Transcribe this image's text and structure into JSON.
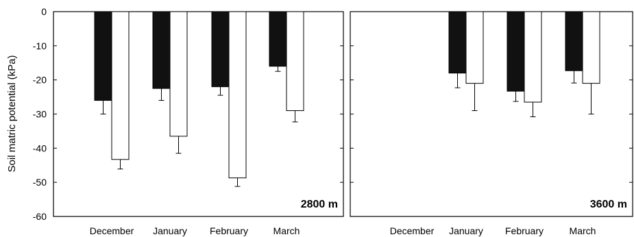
{
  "chart_data": {
    "type": "bar",
    "ylabel": "Soil matric potential  (kPa)",
    "ylim": [
      -60,
      0
    ],
    "yticks": [
      0,
      -10,
      -20,
      -30,
      -40,
      -50,
      -60
    ],
    "categories": [
      "December",
      "January",
      "February",
      "March"
    ],
    "colors": {
      "dark": "#111111",
      "light": "#ffffff"
    },
    "panels": [
      {
        "label": "2800 m",
        "series": [
          {
            "values": [
              -26,
              -22.5,
              -22,
              -16
            ],
            "errors": [
              4,
              3.5,
              2.5,
              1.5
            ]
          },
          {
            "values": [
              -43.3,
              -36.5,
              -48.7,
              -29
            ],
            "errors": [
              2.8,
              5,
              2.5,
              3.3
            ]
          }
        ]
      },
      {
        "label": "3600 m",
        "series": [
          {
            "values": [
              null,
              -18,
              -23.3,
              -17.3
            ],
            "errors": [
              null,
              4.3,
              3,
              3.6
            ]
          },
          {
            "values": [
              null,
              -21,
              -26.5,
              -21
            ],
            "errors": [
              null,
              8,
              4.3,
              9
            ]
          }
        ]
      }
    ]
  }
}
